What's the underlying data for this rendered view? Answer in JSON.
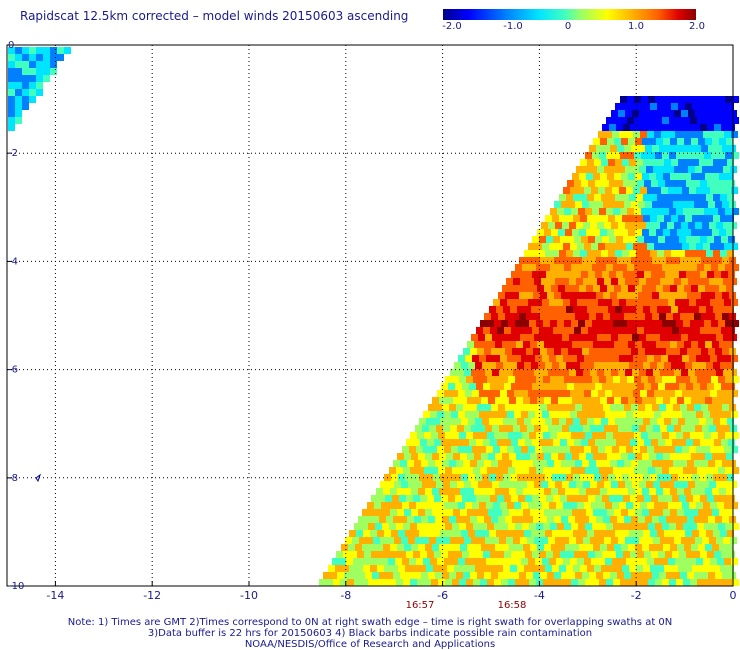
{
  "title": "Rapidscat 12.5km corrected – model winds 20150603 ascending",
  "colorbar": {
    "labels": [
      "-2.0",
      "-1.0",
      "0",
      "1.0",
      "2.0"
    ],
    "colors": [
      "#00008b",
      "#0000ff",
      "#0080ff",
      "#00e5ff",
      "#40ffbf",
      "#a0ff60",
      "#ffff00",
      "#ffb000",
      "#ff6000",
      "#e00000",
      "#8b0000"
    ]
  },
  "axes": {
    "x_ticks": [
      "-14",
      "-12",
      "-10",
      "-8",
      "-6",
      "-4",
      "-2",
      "0"
    ],
    "y_ticks": [
      "0",
      "-2",
      "-4",
      "-6",
      "-8",
      "-10"
    ],
    "x_range": [
      -15,
      0
    ],
    "y_range": [
      -10,
      0
    ],
    "grid": true
  },
  "time_labels": [
    "16:57",
    "16:58"
  ],
  "notes": [
    "Note: 1) Times are GMT 2)Times correspond to 0N at right swath edge – time is right swath for overlapping swaths at 0N",
    "3)Data buffer is 22 hrs for 20150603 4) Black barbs indicate possible rain contamination",
    "NOAA/NESDIS/Office of Research and Applications"
  ]
}
